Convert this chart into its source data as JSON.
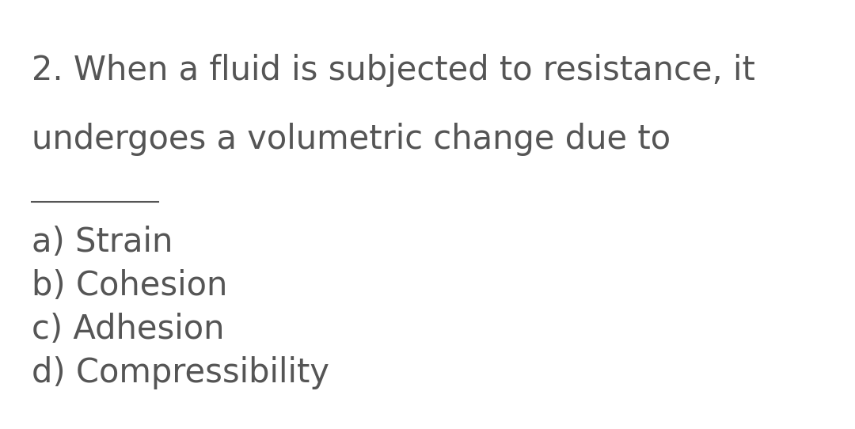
{
  "background_color": "#ffffff",
  "text_color": "#555555",
  "question_line1": "2. When a fluid is subjected to resistance, it",
  "question_line2": "undergoes a volumetric change due to",
  "options": [
    "a) Strain",
    "b) Cohesion",
    "c) Adhesion",
    "d) Compressibility"
  ],
  "question_fontsize": 30,
  "option_fontsize": 30,
  "fig_width": 10.8,
  "fig_height": 5.42,
  "dpi": 100
}
